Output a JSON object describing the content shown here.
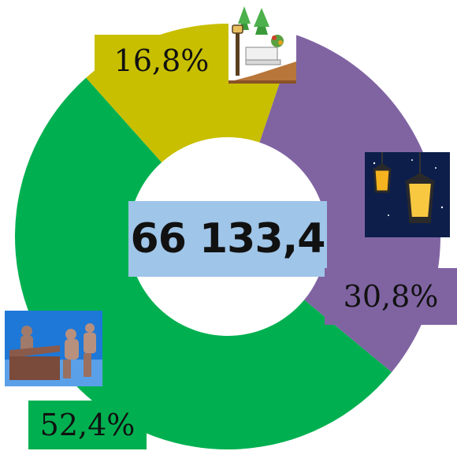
{
  "chart_data": {
    "type": "pie",
    "total": "66 133,4",
    "slices": [
      {
        "label": "16,8%",
        "value": 16.8,
        "color": "#c8bf00",
        "icon": "park-bench-icon"
      },
      {
        "label": "30,8%",
        "value": 30.8,
        "color": "#8064a2",
        "icon": "street-lamps-icon"
      },
      {
        "label": "52,4%",
        "value": 52.4,
        "color": "#00b050",
        "icon": "meeting-icon"
      }
    ]
  },
  "colors": {
    "center_label_bg": "#9fc5e8",
    "background": "#ffffff"
  }
}
